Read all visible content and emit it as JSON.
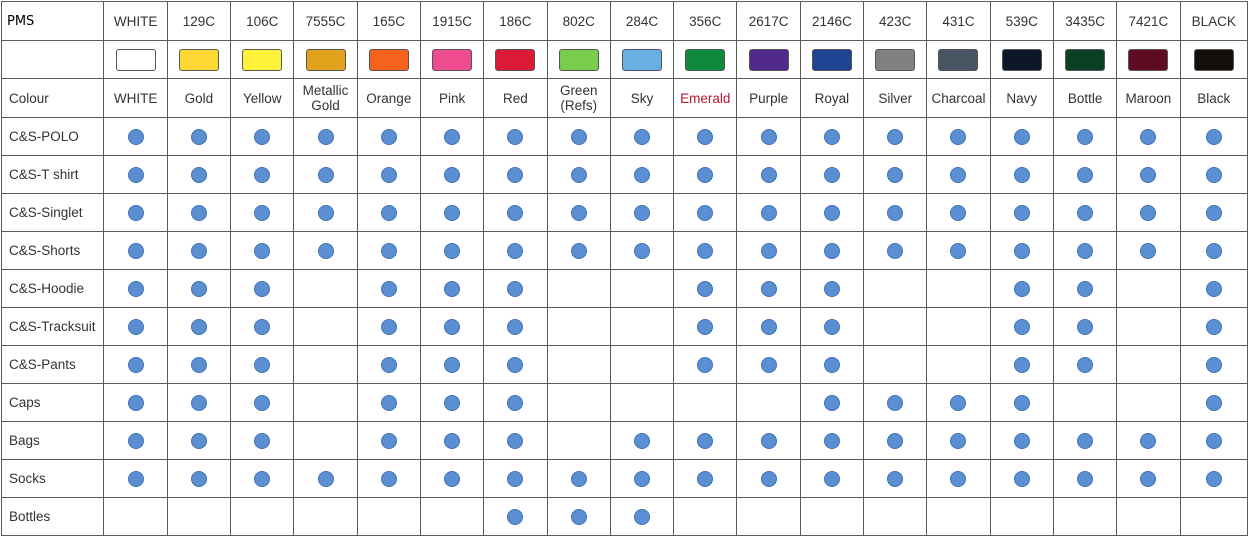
{
  "table": {
    "header_label": "PMS",
    "colour_label": "Colour",
    "columns": [
      {
        "pms": "WHITE",
        "name": "WHITE",
        "swatch": "#ffffff"
      },
      {
        "pms": "129C",
        "name": "Gold",
        "swatch": "#fcd835"
      },
      {
        "pms": "106C",
        "name": "Yellow",
        "swatch": "#fdf13a"
      },
      {
        "pms": "7555C",
        "name": "Metallic Gold",
        "swatch": "#e1a31c"
      },
      {
        "pms": "165C",
        "name": "Orange",
        "swatch": "#f4621e"
      },
      {
        "pms": "1915C",
        "name": "Pink",
        "swatch": "#ef4b8f"
      },
      {
        "pms": "186C",
        "name": "Red",
        "swatch": "#dc1a35"
      },
      {
        "pms": "802C",
        "name": "Green (Refs)",
        "swatch": "#78cd4c"
      },
      {
        "pms": "284C",
        "name": "Sky",
        "swatch": "#68afe3"
      },
      {
        "pms": "356C",
        "name": "Emerald",
        "swatch": "#0f8a3d"
      },
      {
        "pms": "2617C",
        "name": "Purple",
        "swatch": "#522a8c"
      },
      {
        "pms": "2146C",
        "name": "Royal",
        "swatch": "#1d4594"
      },
      {
        "pms": "423C",
        "name": "Silver",
        "swatch": "#818181"
      },
      {
        "pms": "431C",
        "name": "Charcoal",
        "swatch": "#495463"
      },
      {
        "pms": "539C",
        "name": "Navy",
        "swatch": "#0d1729"
      },
      {
        "pms": "3435C",
        "name": "Bottle",
        "swatch": "#0c3f24"
      },
      {
        "pms": "7421C",
        "name": "Maroon",
        "swatch": "#5e0b23"
      },
      {
        "pms": "BLACK",
        "name": "Black",
        "swatch": "#140e0d"
      }
    ],
    "rows": [
      {
        "label": "C&S-POLO",
        "available": [
          1,
          1,
          1,
          1,
          1,
          1,
          1,
          1,
          1,
          1,
          1,
          1,
          1,
          1,
          1,
          1,
          1,
          1
        ]
      },
      {
        "label": "C&S-T shirt",
        "available": [
          1,
          1,
          1,
          1,
          1,
          1,
          1,
          1,
          1,
          1,
          1,
          1,
          1,
          1,
          1,
          1,
          1,
          1
        ]
      },
      {
        "label": "C&S-Singlet",
        "available": [
          1,
          1,
          1,
          1,
          1,
          1,
          1,
          1,
          1,
          1,
          1,
          1,
          1,
          1,
          1,
          1,
          1,
          1
        ]
      },
      {
        "label": "C&S-Shorts",
        "available": [
          1,
          1,
          1,
          1,
          1,
          1,
          1,
          1,
          1,
          1,
          1,
          1,
          1,
          1,
          1,
          1,
          1,
          1
        ]
      },
      {
        "label": "C&S-Hoodie",
        "available": [
          1,
          1,
          1,
          0,
          1,
          1,
          1,
          0,
          0,
          1,
          1,
          1,
          0,
          0,
          1,
          1,
          0,
          1
        ]
      },
      {
        "label": "C&S-Tracksuit",
        "available": [
          1,
          1,
          1,
          0,
          1,
          1,
          1,
          0,
          0,
          1,
          1,
          1,
          0,
          0,
          1,
          1,
          0,
          1
        ]
      },
      {
        "label": "C&S-Pants",
        "available": [
          1,
          1,
          1,
          0,
          1,
          1,
          1,
          0,
          0,
          1,
          1,
          1,
          0,
          0,
          1,
          1,
          0,
          1
        ]
      },
      {
        "label": "Caps",
        "available": [
          1,
          1,
          1,
          0,
          1,
          1,
          1,
          0,
          0,
          0,
          0,
          1,
          1,
          1,
          1,
          0,
          0,
          1
        ]
      },
      {
        "label": "Bags",
        "available": [
          1,
          1,
          1,
          0,
          1,
          1,
          1,
          0,
          1,
          1,
          1,
          1,
          1,
          1,
          1,
          1,
          1,
          1
        ]
      },
      {
        "label": "Socks",
        "available": [
          1,
          1,
          1,
          1,
          1,
          1,
          1,
          1,
          1,
          1,
          1,
          1,
          1,
          1,
          1,
          1,
          1,
          1
        ]
      },
      {
        "label": "Bottles",
        "available": [
          0,
          0,
          0,
          0,
          0,
          0,
          1,
          1,
          1,
          0,
          0,
          0,
          0,
          0,
          0,
          0,
          0,
          0
        ]
      }
    ],
    "colors": {
      "dot_fill": "#5b8fd1",
      "dot_stroke": "#3f73b3",
      "grid": "#5a5a5a",
      "emerald_label": "#b3182f"
    },
    "icon": "availability-dot-icon"
  }
}
